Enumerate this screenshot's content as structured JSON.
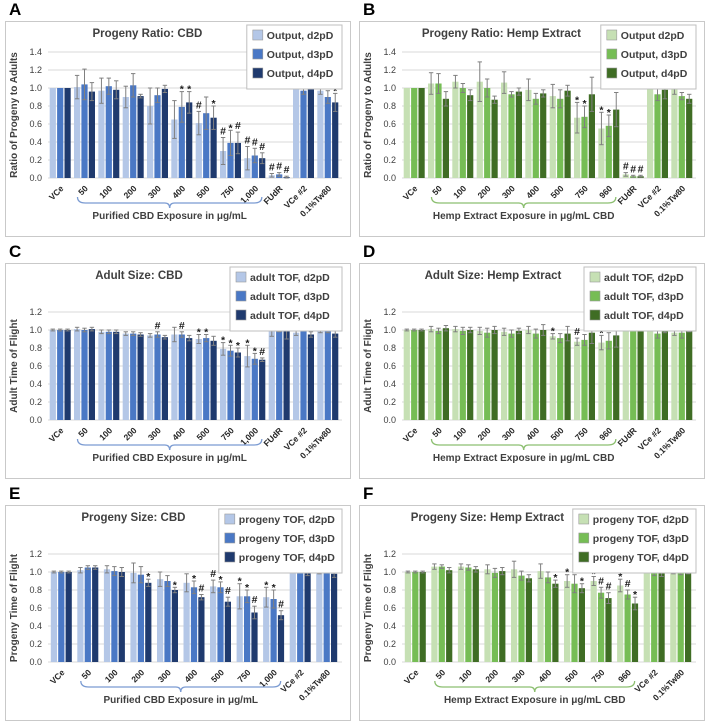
{
  "figure": {
    "background": "#ffffff",
    "error_bar_color": "#808080",
    "grid_color": "#d9d9d9",
    "text_color": "#404040",
    "panel_border_color": "#c9c9c9"
  },
  "chart_data": [
    {
      "type": "bar",
      "panel_letter": "A",
      "title": "Progeny Ratio: CBD",
      "ylabel": "Ratio of Progeny to Adults",
      "xlabel": "Purified CBD Exposure in μg/mL",
      "ylim": [
        0,
        1.4
      ],
      "ytick_step": 0.2,
      "grid": true,
      "legend_position": "top-right",
      "colors": [
        "#b4c7e7",
        "#4a78c5",
        "#1f3a6e"
      ],
      "brace_color": "#7b9bd2",
      "bracket": {
        "from_category": "50",
        "to_category": "1,000"
      },
      "categories": [
        "VCe",
        "50",
        "100",
        "200",
        "300",
        "400",
        "500",
        "750",
        "1,000",
        "FUdR",
        "VCe #2",
        "0.1%Tw80"
      ],
      "series": [
        {
          "name": "Output, d2pD",
          "values": [
            1.0,
            1.01,
            0.97,
            0.9,
            0.8,
            0.65,
            0.61,
            0.3,
            0.22,
            0.03,
            1.13,
            0.97
          ],
          "errors": [
            0,
            0.13,
            0.14,
            0.12,
            0.2,
            0.21,
            0.13,
            0.15,
            0.13,
            0.02,
            0.11,
            0.04
          ]
        },
        {
          "name": "Output, d3pD",
          "values": [
            1.0,
            1.04,
            1.02,
            1.03,
            0.92,
            0.79,
            0.72,
            0.39,
            0.25,
            0.04,
            0.97,
            0.9
          ],
          "errors": [
            0,
            0.17,
            0.09,
            0.13,
            0.08,
            0.17,
            0.18,
            0.14,
            0.08,
            0.02,
            0.04,
            0.07
          ]
        },
        {
          "name": "Output, d4pD",
          "values": [
            1.0,
            0.96,
            0.98,
            0.91,
            0.99,
            0.84,
            0.67,
            0.39,
            0.22,
            0.01,
            1.12,
            0.84
          ],
          "errors": [
            0,
            0.1,
            0.1,
            0.02,
            0.04,
            0.12,
            0.13,
            0.12,
            0.06,
            0.01,
            0.07,
            0.1
          ]
        }
      ],
      "annotations": [
        [
          "",
          "",
          ""
        ],
        [
          "",
          "",
          ""
        ],
        [
          "",
          "",
          ""
        ],
        [
          "",
          "",
          ""
        ],
        [
          "",
          "",
          ""
        ],
        [
          "",
          "*",
          "*"
        ],
        [
          "#",
          "",
          "*"
        ],
        [
          "#",
          "*",
          "#"
        ],
        [
          "#",
          "#",
          "#"
        ],
        [
          "#",
          "#",
          "#"
        ],
        [
          "",
          "",
          ""
        ],
        [
          "",
          "",
          "*"
        ]
      ]
    },
    {
      "type": "bar",
      "panel_letter": "B",
      "title": "Progeny Ratio: Hemp Extract",
      "ylabel": "Ratio of Progeny to Adults",
      "xlabel": "Hemp Extract Exposure in μg/mL CBD",
      "ylim": [
        0,
        1.4
      ],
      "ytick_step": 0.2,
      "grid": true,
      "legend_position": "top-right",
      "colors": [
        "#c6e0b4",
        "#76bd55",
        "#3f6d24"
      ],
      "brace_color": "#8cbf70",
      "bracket": {
        "from_category": "50",
        "to_category": "960"
      },
      "categories": [
        "VCe",
        "50",
        "100",
        "200",
        "300",
        "400",
        "500",
        "750",
        "960",
        "FUdR",
        "VCe #2",
        "0.1%Tw80"
      ],
      "series": [
        {
          "name": "Output d2pD",
          "values": [
            1.0,
            1.05,
            1.07,
            1.07,
            1.06,
            0.98,
            0.91,
            0.67,
            0.55,
            0.04,
            1.1,
            1.04
          ],
          "errors": [
            0,
            0.12,
            0.07,
            0.22,
            0.12,
            0.12,
            0.13,
            0.17,
            0.18,
            0.02,
            0.09,
            0.11
          ]
        },
        {
          "name": "Output, d3pD",
          "values": [
            1.0,
            1.05,
            1.0,
            1.0,
            0.93,
            0.88,
            0.88,
            0.68,
            0.58,
            0.02,
            0.93,
            0.91
          ],
          "errors": [
            0,
            0.11,
            0.05,
            0.1,
            0.03,
            0.06,
            0.1,
            0.12,
            0.12,
            0.01,
            0.07,
            0.04
          ]
        },
        {
          "name": "Output, d4pD",
          "values": [
            1.0,
            0.88,
            0.92,
            0.87,
            0.96,
            0.94,
            0.97,
            0.93,
            0.76,
            0.02,
            0.98,
            0.88
          ],
          "errors": [
            0,
            0.08,
            0.06,
            0.04,
            0.04,
            0.04,
            0.06,
            0.19,
            0.19,
            0.01,
            0.1,
            0.05
          ]
        }
      ],
      "annotations": [
        [
          "",
          "",
          ""
        ],
        [
          "",
          "",
          ""
        ],
        [
          "",
          "",
          ""
        ],
        [
          "",
          "",
          ""
        ],
        [
          "",
          "",
          ""
        ],
        [
          "",
          "",
          ""
        ],
        [
          "",
          "",
          ""
        ],
        [
          "*",
          "*",
          ""
        ],
        [
          "*",
          "*",
          ""
        ],
        [
          "#",
          "#",
          "#"
        ],
        [
          "",
          "",
          ""
        ],
        [
          "",
          "",
          ""
        ]
      ]
    },
    {
      "type": "bar",
      "panel_letter": "C",
      "title": "Adult Size: CBD",
      "ylabel": "Adult Time of Flight",
      "xlabel": "Purified CBD Exposure in μg/mL",
      "ylim": [
        0,
        1.2
      ],
      "ytick_step": 0.2,
      "grid": true,
      "legend_position": "top-right",
      "colors": [
        "#b4c7e7",
        "#4a78c5",
        "#1f3a6e"
      ],
      "brace_color": "#7b9bd2",
      "bracket": {
        "from_category": "50",
        "to_category": "1,000"
      },
      "categories": [
        "VCe",
        "50",
        "100",
        "200",
        "300",
        "400",
        "500",
        "750",
        "1,000",
        "FUdR",
        "VCe #2",
        "0.1%Tw80"
      ],
      "series": [
        {
          "name": "adult TOF, d2pD",
          "values": [
            1.0,
            1.01,
            0.98,
            0.96,
            0.94,
            0.95,
            0.9,
            0.79,
            0.71,
            1.03,
            0.97,
            1.0
          ],
          "errors": [
            0.01,
            0.02,
            0.02,
            0.02,
            0.02,
            0.08,
            0.05,
            0.07,
            0.12,
            0.1,
            0.03,
            0.03
          ]
        },
        {
          "name": "adult TOF, d3pD",
          "values": [
            1.0,
            1.0,
            0.98,
            0.96,
            0.95,
            0.95,
            0.91,
            0.77,
            0.68,
            1.03,
            1.01,
            0.99
          ],
          "errors": [
            0.01,
            0.02,
            0.02,
            0.02,
            0.03,
            0.03,
            0.04,
            0.06,
            0.06,
            0.05,
            0.02,
            0.02
          ]
        },
        {
          "name": "adult TOF, d4pD",
          "values": [
            1.0,
            1.01,
            0.98,
            0.95,
            0.92,
            0.91,
            0.88,
            0.75,
            0.67,
            1.0,
            0.95,
            0.96
          ],
          "errors": [
            0.01,
            0.02,
            0.02,
            0.02,
            0.02,
            0.03,
            0.05,
            0.05,
            0.02,
            0.1,
            0.03,
            0.04
          ]
        }
      ],
      "annotations": [
        [
          "",
          "",
          ""
        ],
        [
          "",
          "",
          ""
        ],
        [
          "",
          "",
          ""
        ],
        [
          "",
          "",
          ""
        ],
        [
          "",
          "#",
          ""
        ],
        [
          "",
          "#",
          ""
        ],
        [
          "*",
          "*",
          ""
        ],
        [
          "*",
          "*",
          "*"
        ],
        [
          "*",
          "*",
          "#"
        ],
        [
          "",
          "",
          ""
        ],
        [
          "",
          "",
          ""
        ],
        [
          "",
          "",
          ""
        ]
      ]
    },
    {
      "type": "bar",
      "panel_letter": "D",
      "title": "Adult Size: Hemp Extract",
      "ylabel": "Adult Time of Flight",
      "xlabel": "Hemp Extract Exposure in μg/mL CBD",
      "ylim": [
        0,
        1.2
      ],
      "ytick_step": 0.2,
      "grid": true,
      "legend_position": "top-right",
      "colors": [
        "#c6e0b4",
        "#76bd55",
        "#3f6d24"
      ],
      "brace_color": "#8cbf70",
      "bracket": {
        "from_category": "50",
        "to_category": "960"
      },
      "categories": [
        "VCe",
        "50",
        "100",
        "200",
        "300",
        "400",
        "500",
        "750",
        "960",
        "FUdR",
        "VCe #2",
        "0.1%Tw80"
      ],
      "series": [
        {
          "name": "adult TOF, d2pD",
          "values": [
            1.0,
            1.01,
            1.01,
            0.99,
            0.98,
            1.0,
            0.93,
            0.87,
            0.86,
            1.05,
            1.03,
            0.97
          ],
          "errors": [
            0.01,
            0.03,
            0.03,
            0.04,
            0.04,
            0.04,
            0.03,
            0.04,
            0.08,
            0.02,
            0.04,
            0.03
          ]
        },
        {
          "name": "adult TOF, d3pD",
          "values": [
            1.0,
            0.99,
            0.99,
            0.97,
            0.96,
            0.96,
            0.91,
            0.89,
            0.88,
            1.02,
            0.96,
            0.97
          ],
          "errors": [
            0.01,
            0.03,
            0.04,
            0.05,
            0.04,
            0.05,
            0.05,
            0.06,
            0.09,
            0.03,
            0.05,
            0.06
          ]
        },
        {
          "name": "adult TOF, d4pD",
          "values": [
            1.0,
            1.02,
            1.0,
            1.0,
            0.99,
            1.0,
            0.96,
            0.97,
            0.94,
            1.07,
            1.0,
            1.01
          ],
          "errors": [
            0.01,
            0.03,
            0.03,
            0.04,
            0.03,
            0.06,
            0.08,
            0.12,
            0.13,
            0.04,
            0.03,
            0.03
          ]
        }
      ],
      "annotations": [
        [
          "",
          "",
          ""
        ],
        [
          "",
          "",
          ""
        ],
        [
          "",
          "",
          ""
        ],
        [
          "",
          "",
          ""
        ],
        [
          "",
          "",
          ""
        ],
        [
          "",
          "",
          ""
        ],
        [
          "*",
          "",
          ""
        ],
        [
          "#",
          "",
          ""
        ],
        [
          "*",
          "",
          ""
        ],
        [
          "",
          "",
          ""
        ],
        [
          "",
          "",
          ""
        ],
        [
          "",
          "",
          ""
        ]
      ]
    },
    {
      "type": "bar",
      "panel_letter": "E",
      "title": "Progeny Size: CBD",
      "ylabel": "Progeny Time of Flight",
      "xlabel": "Purified CBD Exposure in μg/mL",
      "ylim": [
        0,
        1.2
      ],
      "ytick_step": 0.2,
      "grid": true,
      "legend_position": "top-right",
      "colors": [
        "#b4c7e7",
        "#4a78c5",
        "#1f3a6e"
      ],
      "brace_color": "#7b9bd2",
      "bracket": {
        "from_category": "50",
        "to_category": "1,000"
      },
      "categories": [
        "VCe",
        "50",
        "100",
        "200",
        "300",
        "400",
        "500",
        "750",
        "1,000",
        "VCe #2",
        "0.1%Tw80"
      ],
      "series": [
        {
          "name": "progeny TOF, d2pD",
          "values": [
            1.0,
            1.02,
            1.03,
            0.99,
            0.92,
            0.88,
            0.84,
            0.73,
            0.72,
            1.04,
            1.02
          ],
          "errors": [
            0.01,
            0.03,
            0.04,
            0.11,
            0.08,
            0.1,
            0.07,
            0.14,
            0.11,
            0.04,
            0.04
          ]
        },
        {
          "name": "progeny TOF, d3pD",
          "values": [
            1.0,
            1.05,
            1.01,
            0.97,
            0.9,
            0.83,
            0.83,
            0.73,
            0.7,
            1.03,
            1.05
          ],
          "errors": [
            0.01,
            0.02,
            0.05,
            0.09,
            0.06,
            0.07,
            0.06,
            0.07,
            0.1,
            0.03,
            0.02
          ]
        },
        {
          "name": "progeny TOF, d4pD",
          "values": [
            1.0,
            1.05,
            1.0,
            0.88,
            0.8,
            0.72,
            0.67,
            0.55,
            0.52,
            0.99,
            0.98
          ],
          "errors": [
            0.01,
            0.02,
            0.05,
            0.04,
            0.03,
            0.03,
            0.05,
            0.07,
            0.05,
            0.03,
            0.04
          ]
        }
      ],
      "annotations": [
        [
          "",
          "",
          ""
        ],
        [
          "",
          "",
          ""
        ],
        [
          "",
          "",
          ""
        ],
        [
          "",
          "",
          "*"
        ],
        [
          "",
          "",
          "*"
        ],
        [
          "",
          "*",
          "#"
        ],
        [
          "#",
          "*",
          "#"
        ],
        [
          "*",
          "*",
          "#"
        ],
        [
          "*",
          "*",
          "#"
        ],
        [
          "",
          "",
          ""
        ],
        [
          "",
          "",
          ""
        ]
      ]
    },
    {
      "type": "bar",
      "panel_letter": "F",
      "title": "Progeny Size: Hemp Extract",
      "ylabel": "Progeny Time of Flight",
      "xlabel": "Hemp Extract Exposure in μg/mL CBD",
      "ylim": [
        0,
        1.2
      ],
      "ytick_step": 0.2,
      "grid": true,
      "legend_position": "top-right",
      "colors": [
        "#c6e0b4",
        "#76bd55",
        "#3f6d24"
      ],
      "brace_color": "#8cbf70",
      "bracket": {
        "from_category": "50",
        "to_category": "960"
      },
      "categories": [
        "VCe",
        "50",
        "100",
        "200",
        "300",
        "400",
        "500",
        "750",
        "960",
        "VCe #2",
        "0.1%Tw80"
      ],
      "series": [
        {
          "name": "progeny TOF, d2pD",
          "values": [
            1.0,
            1.06,
            1.06,
            1.03,
            1.03,
            1.01,
            0.9,
            0.9,
            0.85,
            1.05,
            1.04
          ],
          "errors": [
            0.01,
            0.03,
            0.03,
            0.05,
            0.09,
            0.08,
            0.07,
            0.05,
            0.07,
            0.05,
            0.06
          ]
        },
        {
          "name": "progeny TOF, d3pD",
          "values": [
            1.0,
            1.06,
            1.05,
            0.99,
            0.96,
            0.94,
            0.87,
            0.77,
            0.75,
            0.99,
            1.01
          ],
          "errors": [
            0.01,
            0.02,
            0.03,
            0.05,
            0.05,
            0.06,
            0.1,
            0.06,
            0.05,
            0.03,
            0.04
          ]
        },
        {
          "name": "progeny TOF, d4pD",
          "values": [
            1.0,
            1.02,
            1.03,
            1.01,
            0.93,
            0.87,
            0.82,
            0.71,
            0.65,
            0.99,
            1.02
          ],
          "errors": [
            0.01,
            0.03,
            0.03,
            0.04,
            0.04,
            0.04,
            0.05,
            0.06,
            0.07,
            0.04,
            0.04
          ]
        }
      ],
      "annotations": [
        [
          "",
          "",
          ""
        ],
        [
          "",
          "",
          ""
        ],
        [
          "",
          "",
          ""
        ],
        [
          "",
          "",
          ""
        ],
        [
          "",
          "",
          ""
        ],
        [
          "",
          "",
          "*"
        ],
        [
          "*",
          "",
          "*"
        ],
        [
          "*",
          "#",
          "#"
        ],
        [
          "*",
          "#",
          "*"
        ],
        [
          "",
          "",
          ""
        ],
        [
          "",
          "",
          ""
        ]
      ]
    }
  ]
}
